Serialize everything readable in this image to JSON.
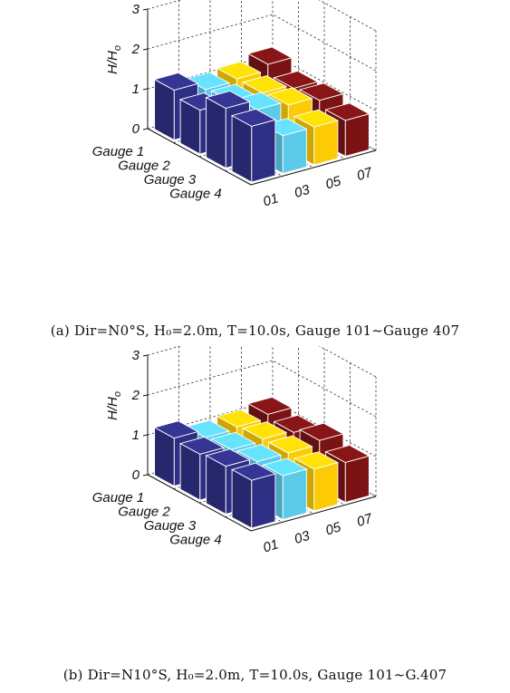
{
  "chart_data": [
    {
      "type": "bar3d",
      "zlabel_main": "H/H",
      "zlabel_sub": "o",
      "zticks": [
        "0",
        "1",
        "2",
        "3"
      ],
      "zlim": [
        0,
        3
      ],
      "rows": [
        "Gauge 1",
        "Gauge 2",
        "Gauge 3",
        "Gauge 4"
      ],
      "columns": [
        "01",
        "03",
        "05",
        "07"
      ],
      "column_colors": [
        "#2e2f84",
        "#5ccbea",
        "#fccb05",
        "#7b1314"
      ],
      "values": [
        [
          1.25,
          1.05,
          1.1,
          1.25
        ],
        [
          1.1,
          1.1,
          1.1,
          1.0
        ],
        [
          1.5,
          1.25,
          1.15,
          1.05
        ],
        [
          1.4,
          0.95,
          0.95,
          0.9
        ]
      ],
      "grid": true,
      "caption": "(a) Dir=N0°S, H₀=2.0m, T=10.0s, Gauge 101~Gauge 407"
    },
    {
      "type": "bar3d",
      "zlabel_main": "H/H",
      "zlabel_sub": "o",
      "zticks": [
        "0",
        "1",
        "2",
        "3"
      ],
      "zlim": [
        0,
        3
      ],
      "rows": [
        "Gauge 1",
        "Gauge 2",
        "Gauge 3",
        "Gauge 4"
      ],
      "columns": [
        "01",
        "03",
        "05",
        "07"
      ],
      "column_colors": [
        "#2e2f84",
        "#5ccbea",
        "#fccb05",
        "#7b1314"
      ],
      "values": [
        [
          1.2,
          1.0,
          1.05,
          1.15
        ],
        [
          1.15,
          1.05,
          1.1,
          1.05
        ],
        [
          1.2,
          1.1,
          1.1,
          1.2
        ],
        [
          1.2,
          1.1,
          1.05,
          1.0
        ]
      ],
      "grid": true,
      "caption": "(b) Dir=N10°S, H₀=2.0m, T=10.0s, Gauge 101~G.407"
    }
  ]
}
